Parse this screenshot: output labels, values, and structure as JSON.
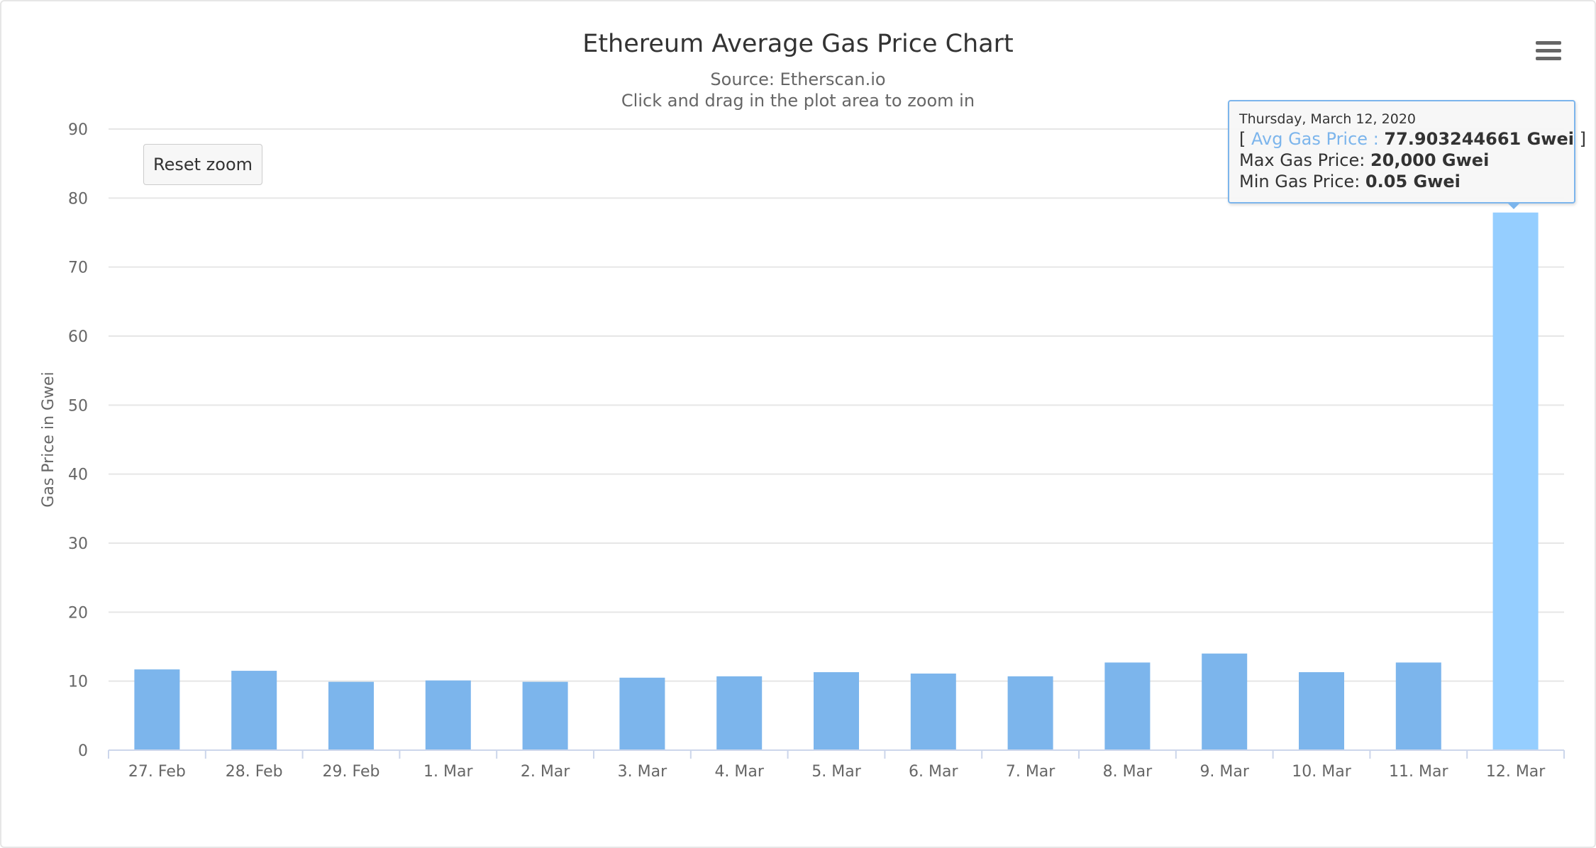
{
  "chart_data": {
    "type": "bar",
    "title": "Ethereum Average Gas Price Chart",
    "subtitle": "Source: Etherscan.io",
    "subtitle2": "Click and drag in the plot area to zoom in",
    "ylabel": "Gas Price in Gwei",
    "xlabel": "",
    "ylim": [
      0,
      90
    ],
    "yticks": [
      0,
      10,
      20,
      30,
      40,
      50,
      60,
      70,
      80,
      90
    ],
    "grid": true,
    "categories": [
      "27. Feb",
      "28. Feb",
      "29. Feb",
      "1. Mar",
      "2. Mar",
      "3. Mar",
      "4. Mar",
      "5. Mar",
      "6. Mar",
      "7. Mar",
      "8. Mar",
      "9. Mar",
      "10. Mar",
      "11. Mar",
      "12. Mar"
    ],
    "series": [
      {
        "values": [
          11.7,
          11.5,
          9.9,
          10.1,
          9.9,
          10.5,
          10.7,
          11.3,
          11.1,
          10.7,
          12.7,
          14.0,
          11.3,
          12.7,
          77.903244661
        ]
      }
    ],
    "bar_color": "#7cb5ec",
    "highlight_color": "#95ceff",
    "highlight_index": 14
  },
  "controls": {
    "reset_zoom_label": "Reset zoom",
    "menu_icon": "hamburger-menu-icon"
  },
  "tooltip": {
    "date": "Thursday, March 12, 2020",
    "open_bracket": "[ ",
    "series_label": "Avg Gas Price : ",
    "avg_value": "77.903244661 Gwei",
    "close_bracket": " ]",
    "max_label": "Max Gas Price: ",
    "max_value": "20,000 Gwei",
    "min_label": "Min Gas Price: ",
    "min_value": "0.05 Gwei",
    "border_color": "#7cb5ec"
  }
}
